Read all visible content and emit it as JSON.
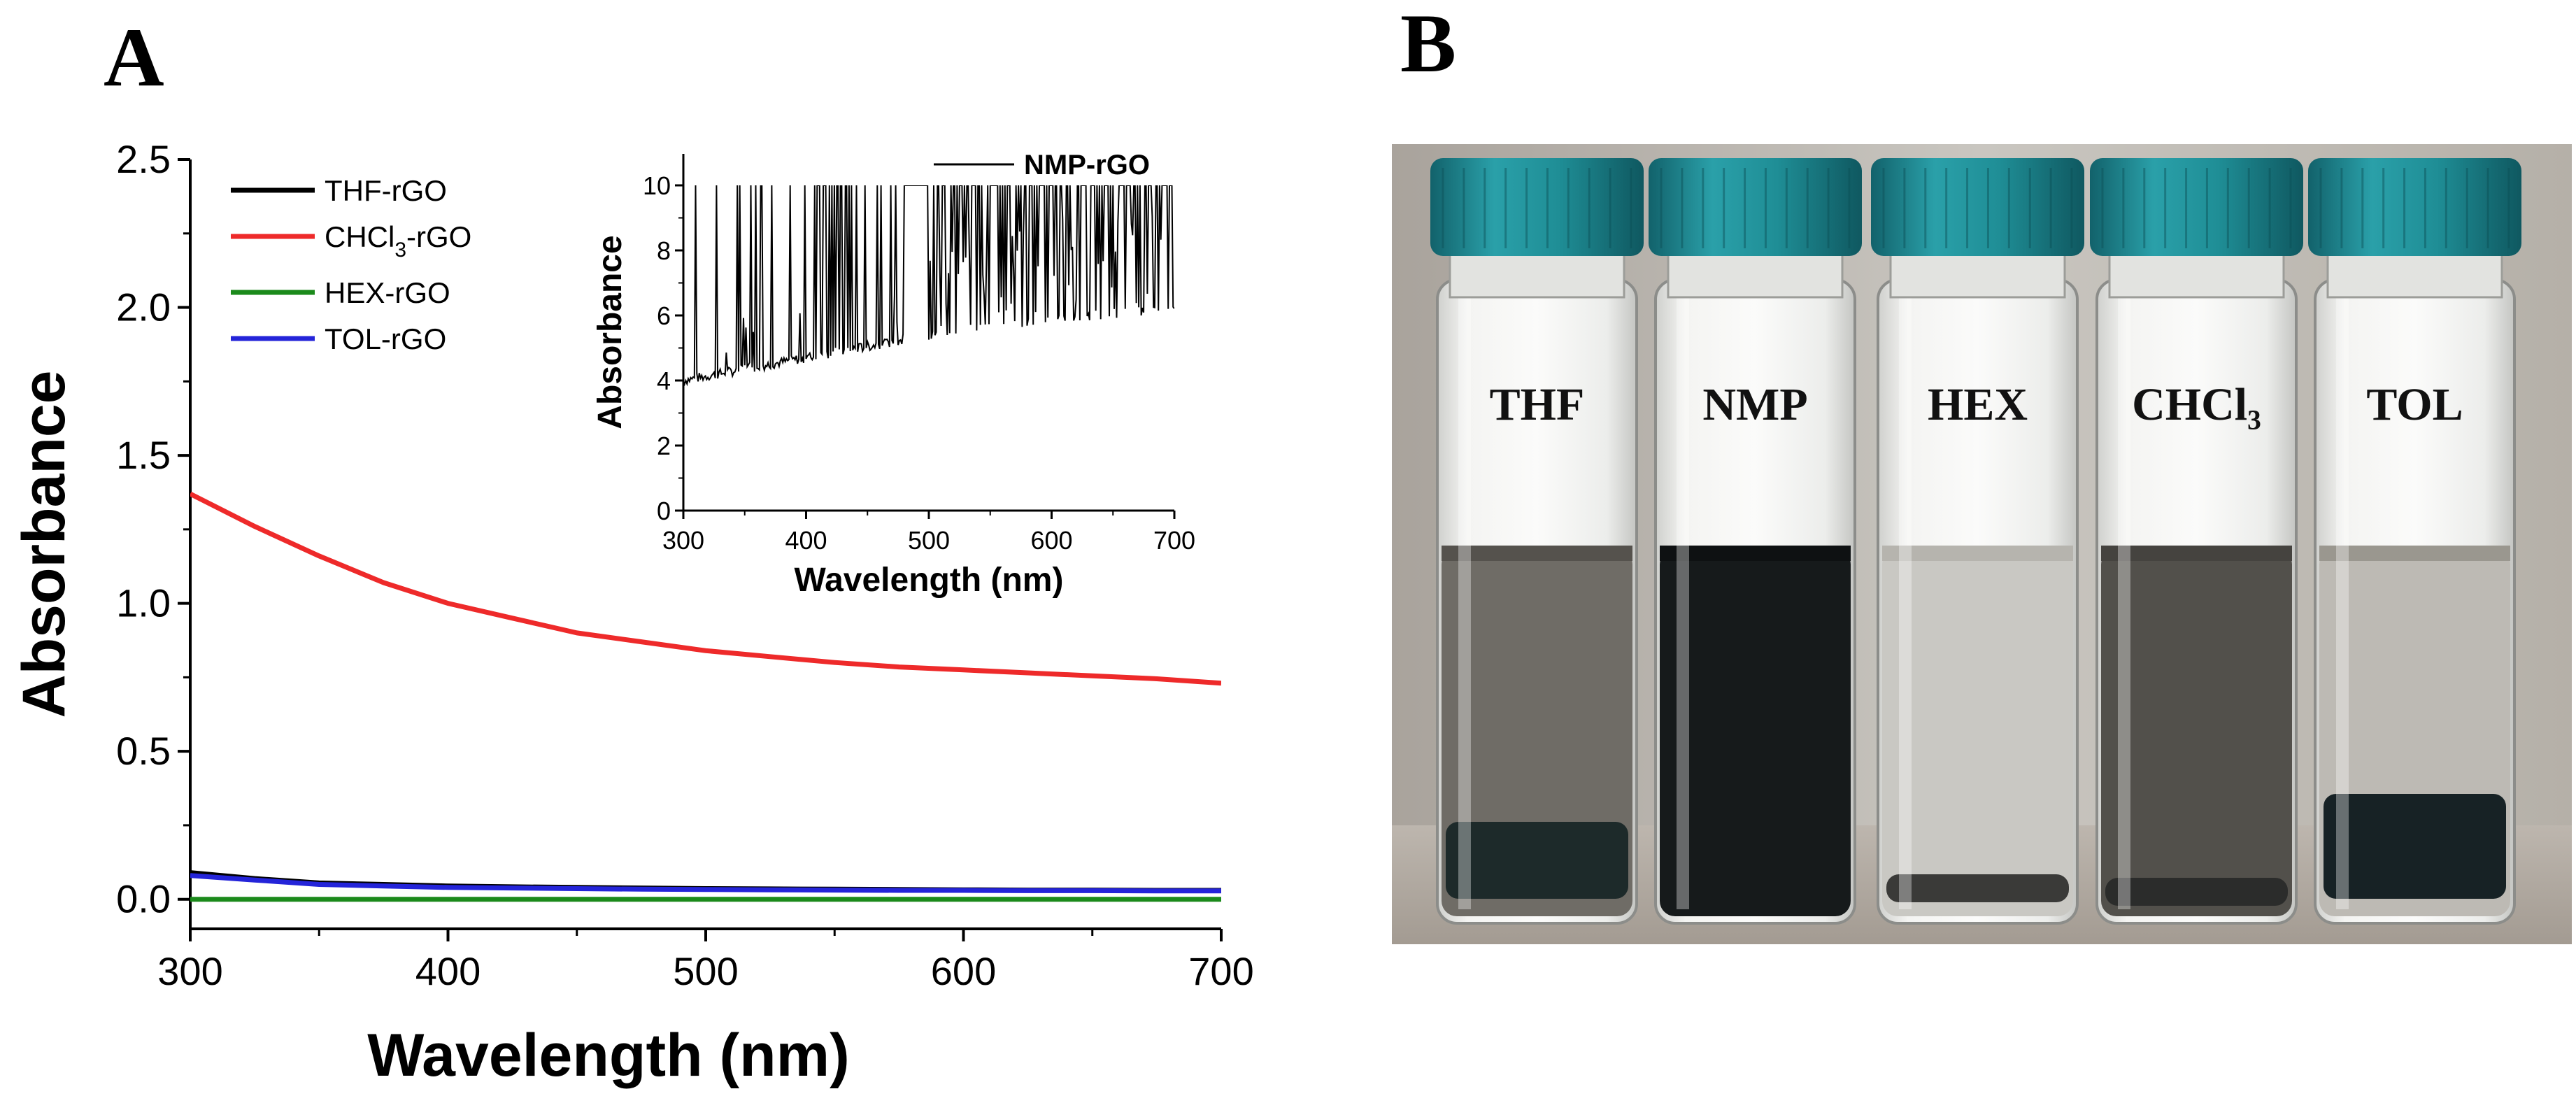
{
  "panels": {
    "a_letter": "A",
    "b_letter": "B"
  },
  "chart_data": {
    "type": "line",
    "title": "",
    "xlabel": "Wavelength (nm)",
    "ylabel": "Absorbance",
    "xlim": [
      300,
      700
    ],
    "ylim": [
      -0.1,
      2.5
    ],
    "x_ticks": [
      "300",
      "400",
      "500",
      "600",
      "700"
    ],
    "y_ticks": [
      "0.0",
      "0.5",
      "1.0",
      "1.5",
      "2.0",
      "2.5"
    ],
    "x": [
      300,
      325,
      350,
      375,
      400,
      425,
      450,
      475,
      500,
      525,
      550,
      575,
      600,
      625,
      650,
      675,
      700
    ],
    "series": [
      {
        "name": "THF-rGO",
        "name_main": "THF-rGO",
        "color": "#000000",
        "values": [
          0.09,
          0.07,
          0.055,
          0.05,
          0.045,
          0.042,
          0.04,
          0.038,
          0.036,
          0.035,
          0.034,
          0.033,
          0.032,
          0.031,
          0.031,
          0.03,
          0.03
        ]
      },
      {
        "name": "CHCl3-rGO",
        "name_main": "CHCl",
        "name_sub": "3",
        "name_tail": "-rGO",
        "color": "#ee2a2a",
        "values": [
          1.37,
          1.26,
          1.16,
          1.07,
          1.0,
          0.95,
          0.9,
          0.87,
          0.84,
          0.82,
          0.8,
          0.785,
          0.775,
          0.765,
          0.755,
          0.745,
          0.73
        ]
      },
      {
        "name": "HEX-rGO",
        "name_main": "HEX-rGO",
        "color": "#1b8a1b",
        "values": [
          0.0,
          0.0,
          0.0,
          0.0,
          0.0,
          0.0,
          0.0,
          0.0,
          0.0,
          0.0,
          0.0,
          0.0,
          0.0,
          0.0,
          0.0,
          0.0,
          0.0
        ]
      },
      {
        "name": "TOL-rGO",
        "name_main": "TOL-rGO",
        "color": "#2424d9",
        "values": [
          0.08,
          0.065,
          0.05,
          0.045,
          0.04,
          0.038,
          0.036,
          0.034,
          0.033,
          0.032,
          0.031,
          0.03,
          0.03,
          0.029,
          0.029,
          0.028,
          0.028
        ]
      }
    ],
    "inset": {
      "type": "line",
      "xlabel": "Wavelength (nm)",
      "ylabel": "Absorbance",
      "xlim": [
        300,
        700
      ],
      "ylim": [
        0,
        10
      ],
      "x_ticks": [
        "300",
        "400",
        "500",
        "600",
        "700"
      ],
      "y_ticks": [
        "0",
        "2",
        "4",
        "6",
        "8",
        "10"
      ],
      "series": [
        {
          "name": "NMP-rGO",
          "color": "#000000",
          "baseline": [
            [
              300,
              4.0
            ],
            [
              400,
              4.7
            ],
            [
              500,
              5.4
            ],
            [
              600,
              5.9
            ],
            [
              700,
              6.2
            ]
          ],
          "saturated_value": 10,
          "saturated_from": 480,
          "note": "noisy saturated signal, spikes to 10"
        }
      ]
    }
  },
  "photo": {
    "vials": [
      "THF",
      "NMP",
      "HEX",
      "CHCl₃",
      "TOL"
    ],
    "cap_color": "#1f8e96"
  }
}
